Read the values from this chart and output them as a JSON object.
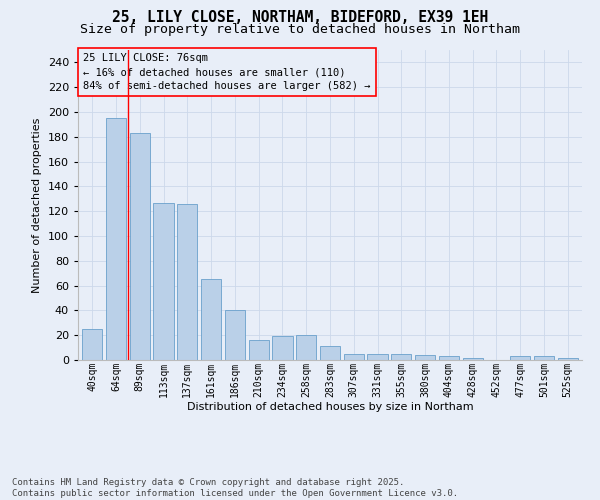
{
  "title1": "25, LILY CLOSE, NORTHAM, BIDEFORD, EX39 1EH",
  "title2": "Size of property relative to detached houses in Northam",
  "xlabel": "Distribution of detached houses by size in Northam",
  "ylabel": "Number of detached properties",
  "categories": [
    "40sqm",
    "64sqm",
    "89sqm",
    "113sqm",
    "137sqm",
    "161sqm",
    "186sqm",
    "210sqm",
    "234sqm",
    "258sqm",
    "283sqm",
    "307sqm",
    "331sqm",
    "355sqm",
    "380sqm",
    "404sqm",
    "428sqm",
    "452sqm",
    "477sqm",
    "501sqm",
    "525sqm"
  ],
  "values": [
    25,
    195,
    183,
    127,
    126,
    65,
    40,
    16,
    19,
    20,
    11,
    5,
    5,
    5,
    4,
    3,
    2,
    0,
    3,
    3,
    2
  ],
  "bar_color": "#bad0e8",
  "bar_edge_color": "#6aa0cc",
  "grid_color": "#ccd8ea",
  "bg_color": "#e8eef8",
  "annotation_box_text": "25 LILY CLOSE: 76sqm\n← 16% of detached houses are smaller (110)\n84% of semi-detached houses are larger (582) →",
  "vline_x": 1.5,
  "ylim": [
    0,
    250
  ],
  "yticks": [
    0,
    20,
    40,
    60,
    80,
    100,
    120,
    140,
    160,
    180,
    200,
    220,
    240
  ],
  "footer": "Contains HM Land Registry data © Crown copyright and database right 2025.\nContains public sector information licensed under the Open Government Licence v3.0.",
  "title_fontsize": 10.5,
  "subtitle_fontsize": 9.5,
  "annot_fontsize": 7.5,
  "footer_fontsize": 6.5,
  "axis_label_fontsize": 8,
  "tick_fontsize": 7,
  "ytick_fontsize": 8
}
